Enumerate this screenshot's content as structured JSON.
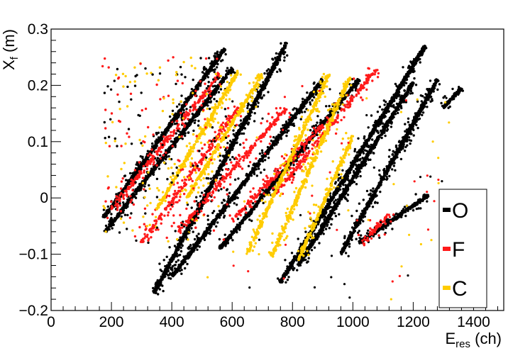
{
  "chart_data": {
    "type": "scatter",
    "title": "",
    "xlabel": {
      "main": "E",
      "sub": "res",
      "unit": " (ch)"
    },
    "ylabel": {
      "main": "X",
      "sub": "f",
      "unit": " (m)"
    },
    "xlim": [
      0,
      1500
    ],
    "ylim": [
      -0.2,
      0.3
    ],
    "x_ticks": [
      0,
      200,
      400,
      600,
      800,
      1000,
      1200,
      1400
    ],
    "x_tick_labels": [
      "0",
      "200",
      "400",
      "600",
      "800",
      "1000",
      "1200",
      "1400"
    ],
    "y_ticks": [
      -0.2,
      -0.1,
      0,
      0.1,
      0.2,
      0.3
    ],
    "y_tick_labels": [
      "−0.2",
      "−0.1",
      "0",
      "0.1",
      "0.2",
      "0.3"
    ],
    "grid": false,
    "legend_position": "bottom-right",
    "series": [
      {
        "name": "O",
        "color": "#000000",
        "bands": [
          {
            "x": [
              175,
              575
            ],
            "y": [
              -0.035,
              0.265
            ]
          },
          {
            "x": [
              180,
              600
            ],
            "y": [
              -0.06,
              0.23
            ]
          },
          {
            "x": [
              340,
              780
            ],
            "y": [
              -0.17,
              0.275
            ]
          },
          {
            "x": [
              400,
              900
            ],
            "y": [
              -0.14,
              0.21
            ]
          },
          {
            "x": [
              560,
              1020
            ],
            "y": [
              -0.09,
              0.21
            ]
          },
          {
            "x": [
              760,
              1240
            ],
            "y": [
              -0.15,
              0.27
            ]
          },
          {
            "x": [
              820,
              1200
            ],
            "y": [
              -0.12,
              0.205
            ]
          },
          {
            "x": [
              960,
              1280
            ],
            "y": [
              -0.1,
              0.21
            ]
          },
          {
            "x": [
              1020,
              1250
            ],
            "y": [
              -0.08,
              0.005
            ]
          },
          {
            "x": [
              1300,
              1360
            ],
            "y": [
              0.16,
              0.195
            ]
          }
        ]
      },
      {
        "name": "F",
        "color": "#ff1a1a",
        "bands": [
          {
            "x": [
              200,
              560
            ],
            "y": [
              -0.02,
              0.22
            ]
          },
          {
            "x": [
              300,
              620
            ],
            "y": [
              -0.08,
              0.16
            ]
          },
          {
            "x": [
              420,
              780
            ],
            "y": [
              -0.06,
              0.16
            ]
          },
          {
            "x": [
              600,
              900
            ],
            "y": [
              -0.04,
              0.13
            ]
          },
          {
            "x": [
              740,
              1080
            ],
            "y": [
              0.005,
              0.23
            ]
          },
          {
            "x": [
              1030,
              1120
            ],
            "y": [
              -0.08,
              -0.03
            ]
          }
        ]
      },
      {
        "name": "C",
        "color": "#ffcc00",
        "bands": [
          {
            "x": [
              350,
              620
            ],
            "y": [
              -0.02,
              0.225
            ]
          },
          {
            "x": [
              450,
              700
            ],
            "y": [
              0.0,
              0.22
            ]
          },
          {
            "x": [
              650,
              920
            ],
            "y": [
              -0.1,
              0.22
            ]
          },
          {
            "x": [
              730,
              990
            ],
            "y": [
              -0.105,
              0.215
            ]
          },
          {
            "x": [
              820,
              1000
            ],
            "y": [
              -0.11,
              0.11
            ]
          }
        ]
      }
    ]
  }
}
